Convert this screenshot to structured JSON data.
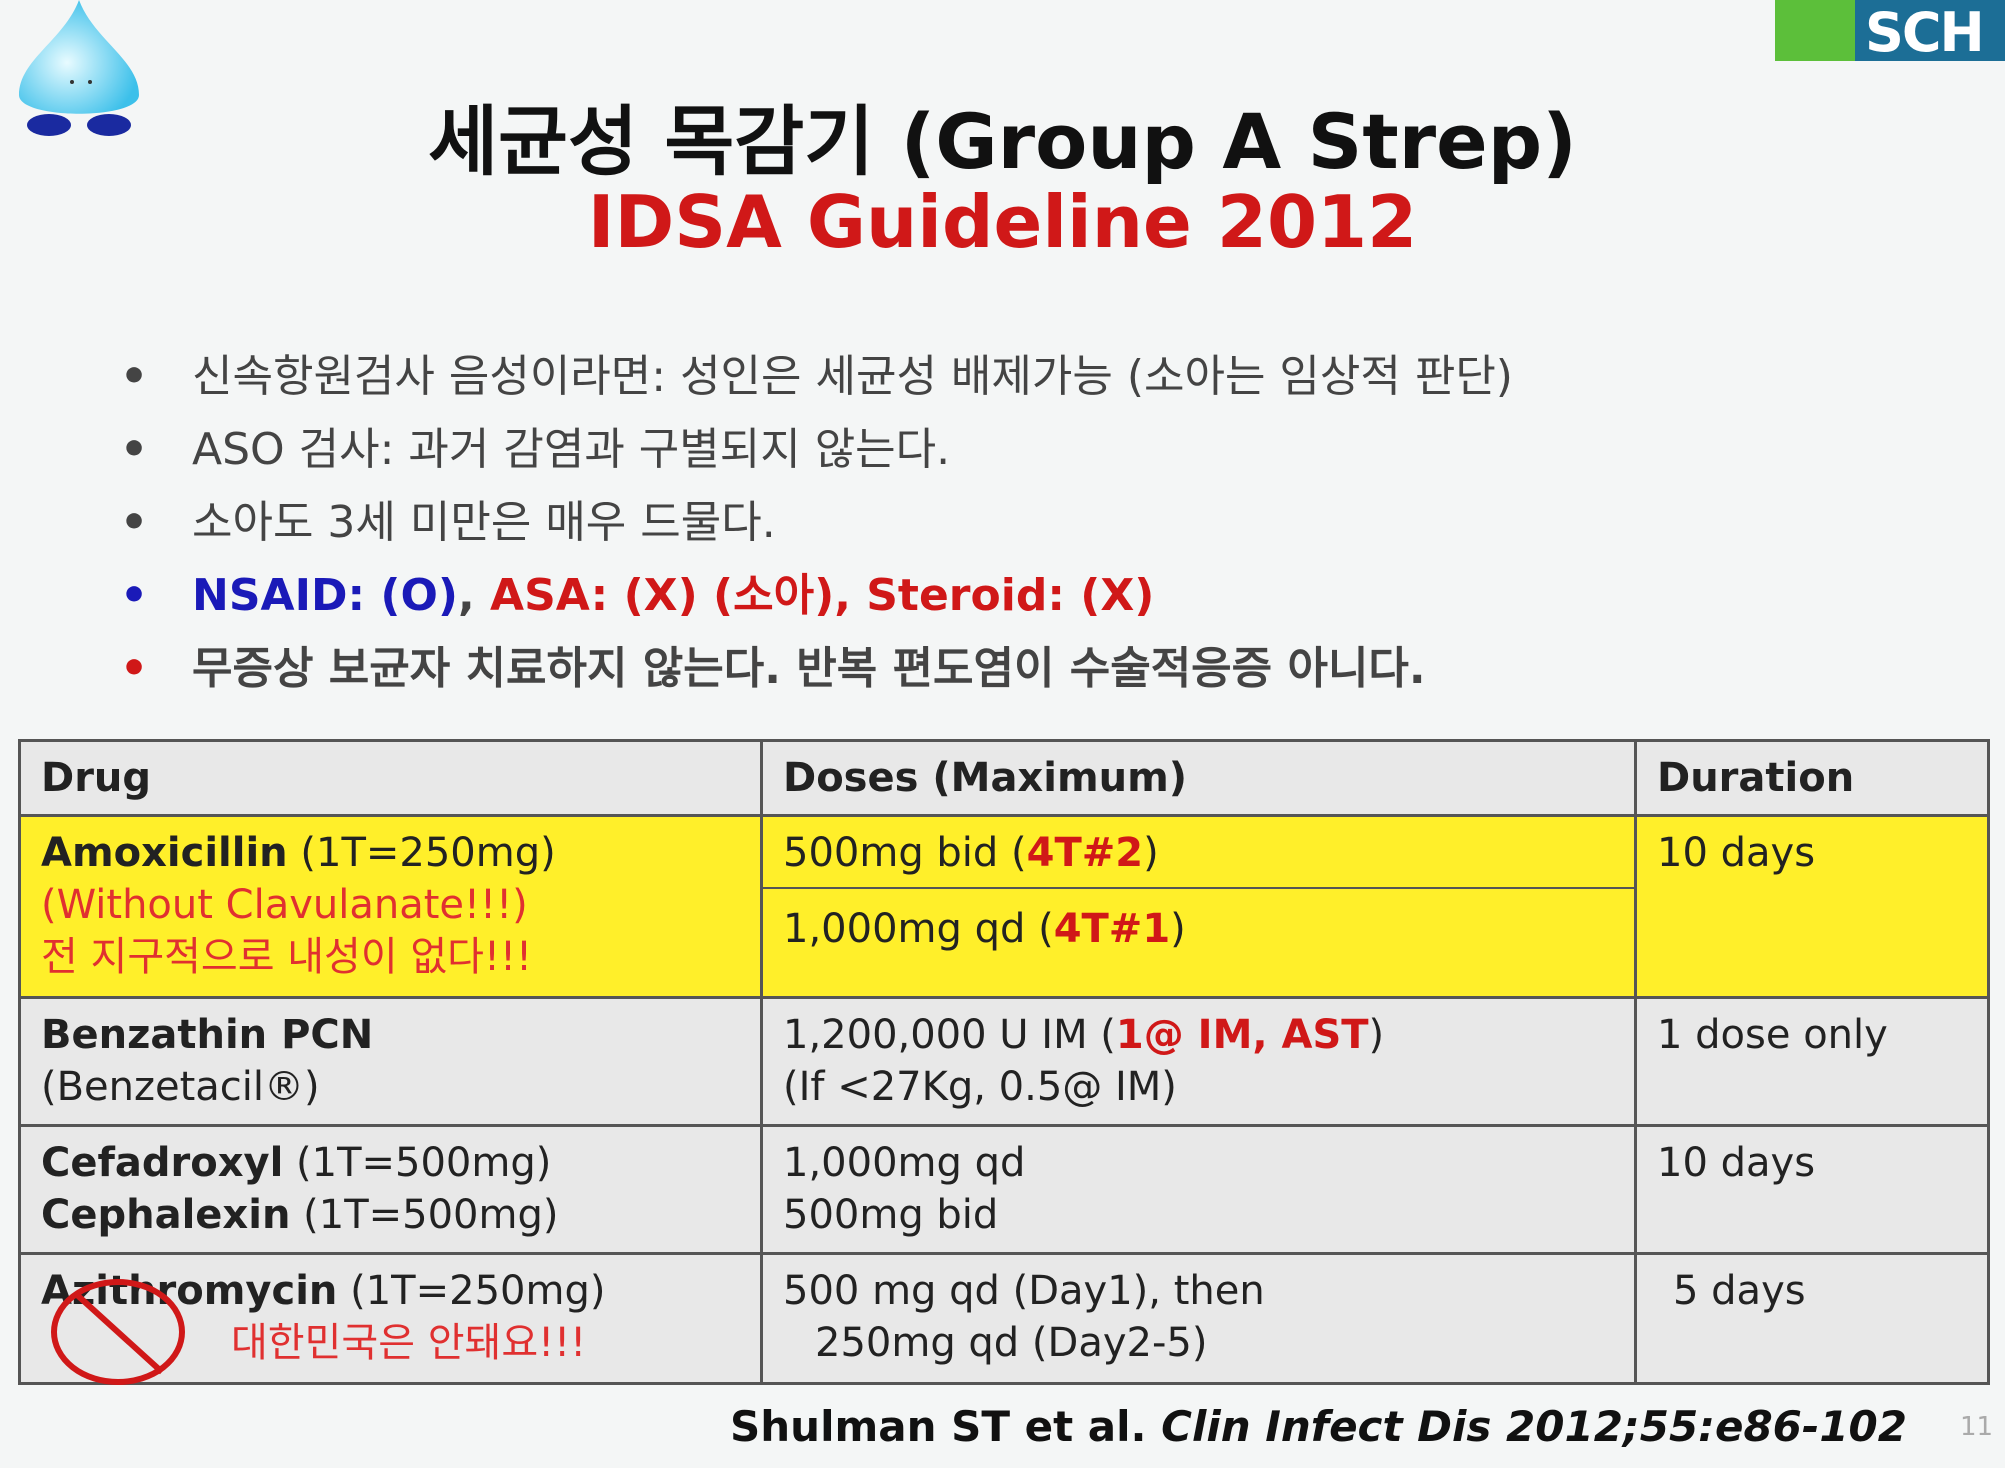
{
  "title": {
    "line1": "세균성 목감기 (Group A Strep)",
    "line2": "IDSA Guideline 2012"
  },
  "logo": {
    "text": "SCH",
    "colors": {
      "green": "#5cbf3a",
      "blue": "#1c6e96"
    }
  },
  "bullets": [
    "신속항원검사 음성이라면: 성인은 세균성 배제가능 (소아는 임상적 판단)",
    "ASO 검사: 과거 감염과 구별되지 않는다.",
    "소아도 3세 미만은 매우 드물다.",
    {
      "nsaid": "NSAID: (O)",
      "sep": ", ",
      "asa": "ASA: (X) (소아), Steroid: (X)"
    },
    "무증상 보균자 치료하지 않는다. 반복 편도염이 수술적응증 아니다."
  ],
  "table": {
    "headers": [
      "Drug",
      "Doses (Maximum)",
      "Duration"
    ],
    "rows": [
      {
        "drug": "Amoxicillin",
        "drug_note": " (1T=250mg)",
        "drug_line2": "(Without Clavulanate!!!)",
        "drug_line3": "전 지구적으로 내성이 없다!!!",
        "dose1": "500mg bid (",
        "dose1_red": "4T#2",
        "dose1_end": ")",
        "dose2": "1,000mg qd (",
        "dose2_red": "4T#1",
        "dose2_end": ")",
        "duration": "10 days"
      },
      {
        "drug": "Benzathin PCN",
        "drug_line2": "(Benzetacil®)",
        "dose1": "1,200,000 U IM (",
        "dose1_red": "1@ IM, AST",
        "dose1_end": ")",
        "dose2": "(If <27Kg, 0.5@ IM)",
        "duration": "1 dose only"
      },
      {
        "drug": "Cefadroxyl",
        "drug_note": " (1T=500mg)",
        "drug2": "Cephalexin",
        "drug2_note": " (1T=500mg)",
        "dose1": "1,000mg qd",
        "dose2": "500mg bid",
        "duration": "10 days"
      },
      {
        "drug": "Azithromycin",
        "drug_note": " (1T=250mg)",
        "drug_line2": "대한민국은 안돼요!!!",
        "dose1": "500 mg qd (Day1), then",
        "dose2": "250mg qd (Day2-5)",
        "duration": "5 days"
      }
    ]
  },
  "citation": {
    "authors": "Shulman ST et al. ",
    "journal": "Clin Infect Dis 2012;55:e86-102"
  },
  "page_number": "11",
  "highlight_color": "#ffef2a"
}
